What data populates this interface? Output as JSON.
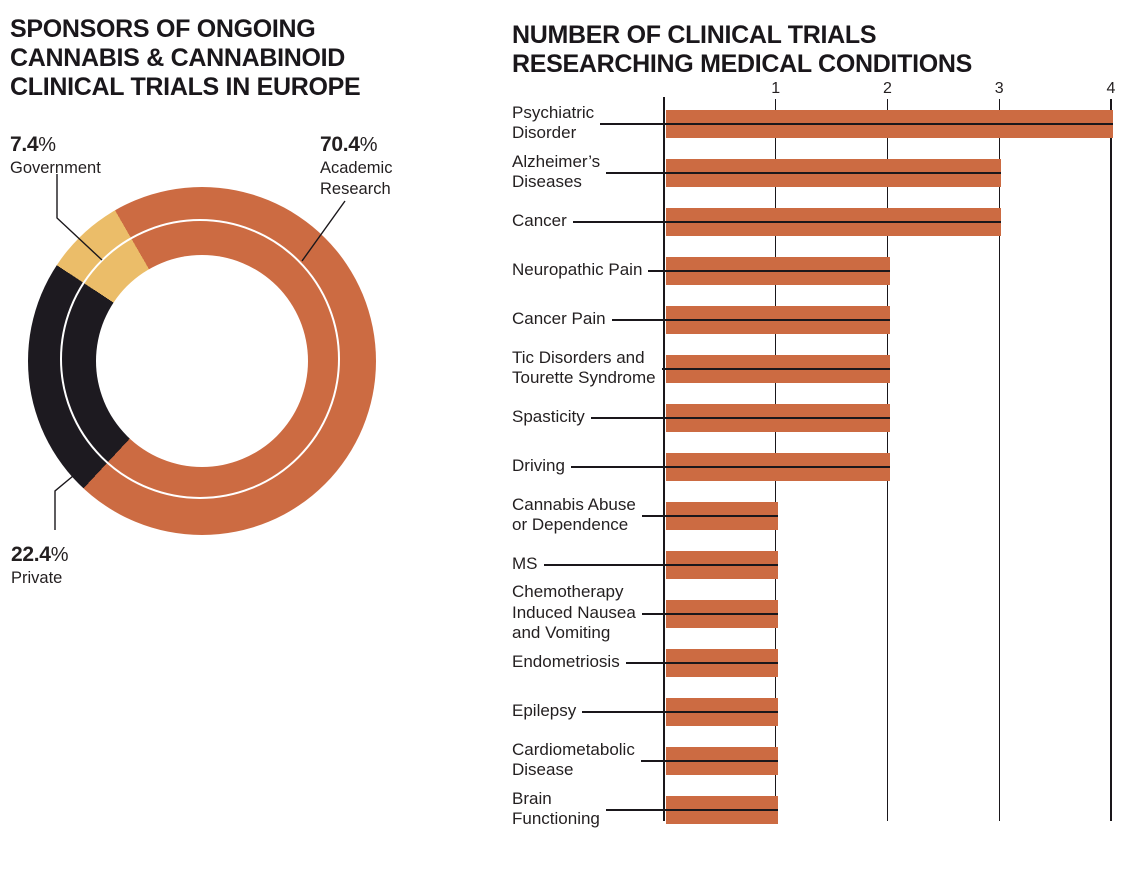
{
  "left_chart": {
    "title": "SPONSORS OF ONGOING\nCANNABIS & CANNABINOID\nCLINICAL TRIALS IN EUROPE",
    "callouts": {
      "government": {
        "pct": "7.4",
        "pct_symbol": "%",
        "name": "Government"
      },
      "academic": {
        "pct": "70.4",
        "pct_symbol": "%",
        "name": "Academic\nResearch"
      },
      "private": {
        "pct": "22.4",
        "pct_symbol": "%",
        "name": "Private"
      }
    }
  },
  "right_chart": {
    "title": "NUMBER OF CLINICAL TRIALS\nRESEARCHING MEDICAL CONDITIONS"
  },
  "colors": {
    "bar_orange": "#CC6B42",
    "slice_academic": "#CC6B42",
    "slice_private": "#1D1A20",
    "slice_government": "#EBBD69",
    "ink": "#1A171B"
  },
  "chart_data": [
    {
      "type": "pie",
      "subtype": "donut",
      "title": "SPONSORS OF ONGOING CANNABIS & CANNABINOID CLINICAL TRIALS IN EUROPE",
      "start_angle_deg": 330,
      "legend_position": "callout-labels",
      "slices": [
        {
          "label": "Academic Research",
          "value_pct": 70.4,
          "color": "#CC6B42"
        },
        {
          "label": "Private",
          "value_pct": 22.4,
          "color": "#1D1A20"
        },
        {
          "label": "Government",
          "value_pct": 7.4,
          "color": "#EBBD69"
        }
      ]
    },
    {
      "type": "bar",
      "orientation": "horizontal",
      "title": "NUMBER OF CLINICAL TRIALS RESEARCHING MEDICAL CONDITIONS",
      "xlim": [
        0,
        4
      ],
      "xticks": [
        "1",
        "2",
        "3",
        "4"
      ],
      "grid": "vertical",
      "bar_color": "#CC6B42",
      "categories": [
        {
          "label": "Psychiatric Disorder",
          "display": "Psychiatric\nDisorder",
          "value": 4
        },
        {
          "label": "Alzheimer’s Diseases",
          "display": "Alzheimer’s\nDiseases",
          "value": 3
        },
        {
          "label": "Cancer",
          "display": "Cancer",
          "value": 3
        },
        {
          "label": "Neuropathic Pain",
          "display": "Neuropathic Pain",
          "value": 2
        },
        {
          "label": "Cancer Pain",
          "display": "Cancer Pain",
          "value": 2
        },
        {
          "label": "Tic Disorders and Tourette Syndrome",
          "display": "Tic Disorders and\nTourette Syndrome",
          "value": 2
        },
        {
          "label": "Spasticity",
          "display": "Spasticity",
          "value": 2
        },
        {
          "label": "Driving",
          "display": "Driving",
          "value": 2
        },
        {
          "label": "Cannabis Abuse or Dependence",
          "display": "Cannabis Abuse\nor Dependence",
          "value": 1
        },
        {
          "label": "MS",
          "display": "MS",
          "value": 1
        },
        {
          "label": "Chemotherapy Induced Nausea and Vomiting",
          "display": "Chemotherapy\nInduced Nausea\nand Vomiting",
          "value": 1
        },
        {
          "label": "Endometriosis",
          "display": "Endometriosis",
          "value": 1
        },
        {
          "label": "Epilepsy",
          "display": "Epilepsy",
          "value": 1
        },
        {
          "label": "Cardiometabolic Disease",
          "display": "Cardiometabolic\nDisease",
          "value": 1
        },
        {
          "label": "Brain Functioning",
          "display": "Brain\nFunctioning",
          "value": 1
        }
      ]
    }
  ]
}
